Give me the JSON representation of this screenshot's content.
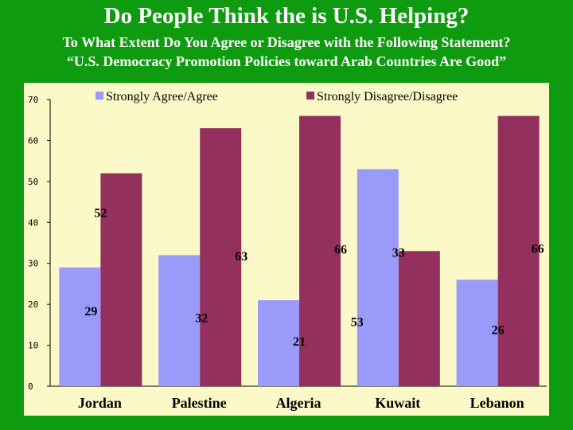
{
  "slide": {
    "title": "Do People Think the is U.S. Helping?",
    "subtitle_line1": "To What Extent Do You Agree or Disagree with the Following Statement?",
    "subtitle_line2": "“U.S. Democracy Promotion Policies toward Arab Countries Are Good”"
  },
  "colors": {
    "background": "#0f9b0f",
    "panel": "#fbf9c7",
    "agree": "#9a9afa",
    "disagree": "#94305e"
  },
  "chart_data": {
    "type": "bar",
    "categories": [
      "Jordan",
      "Palestine",
      "Algeria",
      "Kuwait",
      "Lebanon"
    ],
    "series": [
      {
        "name": "Strongly Agree/Agree",
        "values": [
          29,
          32,
          21,
          53,
          26
        ],
        "labels": [
          "29",
          "32",
          "21",
          "53",
          "26"
        ]
      },
      {
        "name": "Strongly Disagree/Disagree",
        "values": [
          52,
          63,
          66,
          33,
          66
        ],
        "labels": [
          "52",
          "63",
          "66",
          "33",
          "66"
        ]
      }
    ],
    "ylim": [
      0,
      70
    ],
    "yticks": [
      "0",
      "10",
      "20",
      "30",
      "40",
      "50",
      "60",
      "70"
    ],
    "grid": false,
    "legend": "top"
  }
}
